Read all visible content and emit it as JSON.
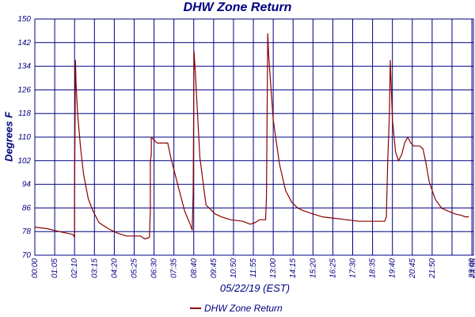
{
  "chart_data": {
    "type": "line",
    "title": "DHW Zone Return",
    "xlabel": "05/22/19 (EST)",
    "ylabel": "Degrees F",
    "ylim": [
      70,
      150
    ],
    "yticks": [
      "70",
      "78",
      "86",
      "94",
      "102",
      "110",
      "118",
      "126",
      "134",
      "142",
      "150"
    ],
    "xticks": [
      "00:00",
      "01:05",
      "02:10",
      "03:15",
      "04:20",
      "05:25",
      "06:30",
      "07:35",
      "08:40",
      "09:45",
      "10:50",
      "11:55",
      "13:00",
      "14:15",
      "15:20",
      "16:25",
      "17:30",
      "18:35",
      "19:40",
      "20:45",
      "21:50",
      "23:00",
      "23:55"
    ],
    "grid": true,
    "legend_position": "bottom-center",
    "series": [
      {
        "name": "DHW Zone Return",
        "color": "#8b0000",
        "x_minutes": [
          0,
          40,
          80,
          125,
          130,
          130,
          133,
          135,
          140,
          150,
          160,
          175,
          190,
          210,
          240,
          270,
          300,
          345,
          360,
          375,
          378,
          378,
          381,
          381,
          390,
          400,
          420,
          435,
          445,
          470,
          490,
          510,
          515,
          518,
          521,
          525,
          540,
          560,
          570,
          590,
          610,
          640,
          680,
          705,
          720,
          735,
          755,
          758,
          762,
          765,
          780,
          800,
          820,
          840,
          860,
          880,
          910,
          940,
          980,
          1020,
          1060,
          1100,
          1145,
          1150,
          1155,
          1160,
          1163,
          1166,
          1170,
          1180,
          1190,
          1200,
          1210,
          1220,
          1230,
          1240,
          1260,
          1270,
          1280,
          1290,
          1310,
          1330,
          1350,
          1375,
          1395,
          1408,
          1420
        ],
        "y": [
          79.5,
          79,
          78,
          77,
          76,
          89,
          136,
          128,
          118,
          106,
          97,
          89,
          85,
          81,
          79,
          77.5,
          76.5,
          76.5,
          75.5,
          76,
          85,
          102,
          104,
          110,
          109,
          108,
          108,
          108,
          103,
          93,
          85,
          80,
          78.5,
          91,
          139,
          132,
          103,
          87,
          86,
          84,
          83,
          82,
          81.5,
          80.5,
          81,
          82,
          82,
          90,
          145,
          138,
          116,
          101,
          92,
          88,
          86,
          85,
          84,
          83,
          82.5,
          82,
          81.5,
          81.5,
          81.5,
          83,
          103,
          117,
          136,
          128,
          116,
          105,
          102,
          104,
          108,
          110,
          108,
          107,
          107,
          106,
          101,
          95,
          89,
          86,
          85,
          84,
          83.5,
          83,
          83
        ]
      }
    ]
  }
}
